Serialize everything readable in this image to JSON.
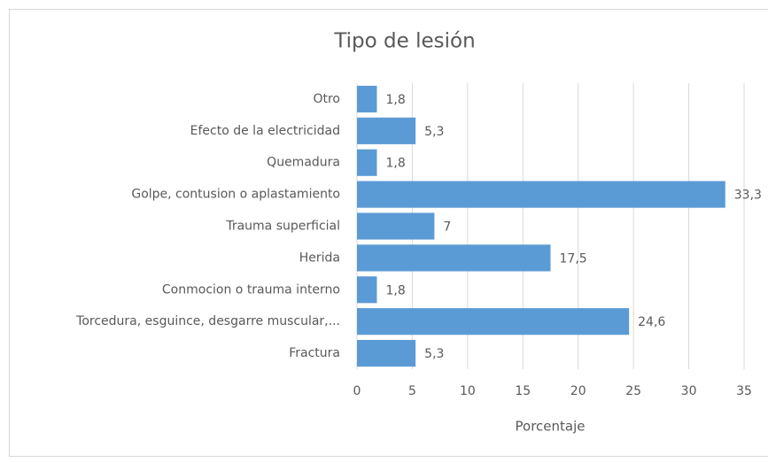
{
  "chart_data": {
    "type": "bar",
    "orientation": "horizontal",
    "title": "Tipo de lesión",
    "x_label": "Porcentaje",
    "categories": [
      "Otro",
      "Efecto de la electricidad",
      "Quemadura",
      "Golpe, contusion o aplastamiento",
      "Trauma superficial",
      "Herida",
      "Conmocion o trauma interno",
      "Torcedura, esguince, desgarre muscular,...",
      "Fractura"
    ],
    "values": [
      1.8,
      5.3,
      1.8,
      33.3,
      7,
      17.5,
      1.8,
      24.6,
      5.3
    ],
    "value_labels": [
      "1,8",
      "5,3",
      "1,8",
      "33,3",
      "7",
      "17,5",
      "1,8",
      "24,6",
      "5,3"
    ],
    "color": "#5b9bd5",
    "xlim": [
      0,
      35
    ],
    "xticks": [
      0,
      5,
      10,
      15,
      20,
      25,
      30,
      35
    ],
    "grid": true
  }
}
